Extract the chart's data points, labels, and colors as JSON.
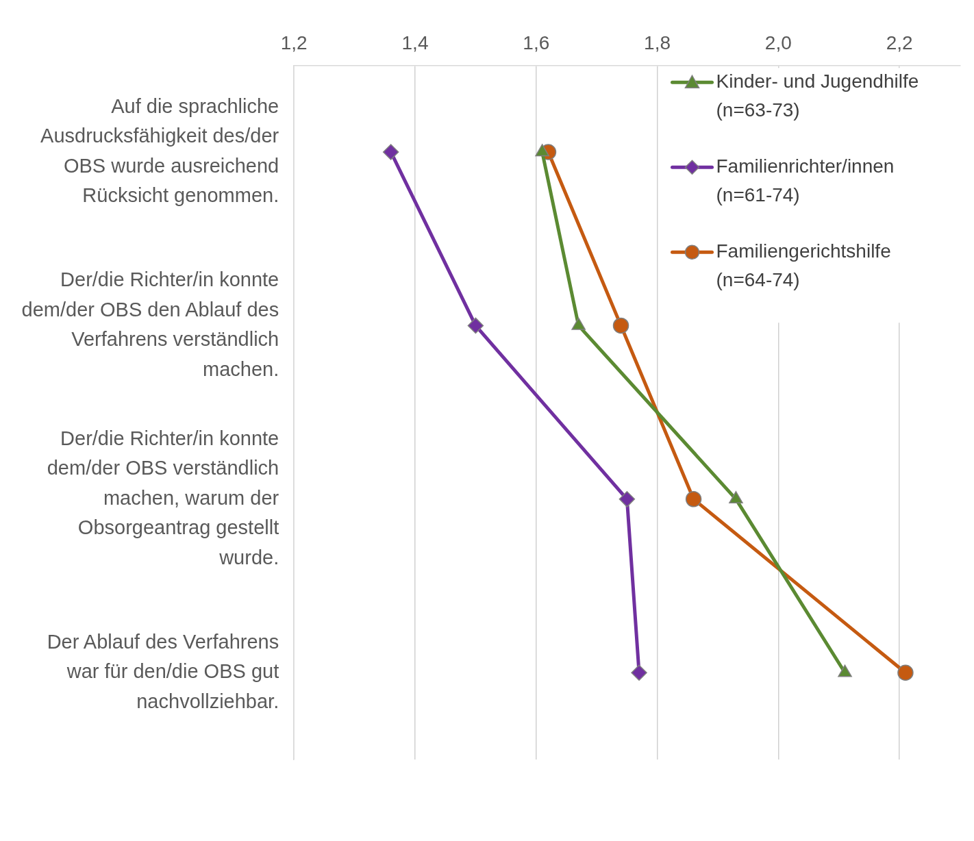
{
  "chart_data": {
    "type": "line",
    "orientation": "horizontal",
    "categories": [
      "Auf die sprachliche Ausdrucksfähigkeit des/der OBS wurde ausreichend Rücksicht genommen.",
      "Der/die Richter/in konnte dem/der OBS den Ablauf des Verfahrens verständlich machen.",
      "Der/die Richter/in konnte dem/der OBS verständlich machen, warum der Obsorgeantrag gestellt wurde.",
      "Der Ablauf des Verfahrens war für den/die OBS gut nachvollziehbar."
    ],
    "series": [
      {
        "name": "Kinder- und Jugendhilfe (n=63-73)",
        "color": "#5b8a32",
        "marker": "triangle",
        "values": [
          1.61,
          1.67,
          1.93,
          2.11
        ]
      },
      {
        "name": "Familienrichter/innen (n=61-74)",
        "color": "#7030a0",
        "marker": "diamond",
        "values": [
          1.36,
          1.5,
          1.75,
          1.77
        ]
      },
      {
        "name": "Familiengerichtshilfe (n=64-74)",
        "color": "#c55a11",
        "marker": "circle",
        "values": [
          1.62,
          1.74,
          1.86,
          2.21
        ]
      }
    ],
    "xlim": [
      1.2,
      2.3
    ],
    "xticks": [
      {
        "value": 1.2,
        "label": "1,2"
      },
      {
        "value": 1.4,
        "label": "1,4"
      },
      {
        "value": 1.6,
        "label": "1,6"
      },
      {
        "value": 1.8,
        "label": "1,8"
      },
      {
        "value": 2.0,
        "label": "2,0"
      },
      {
        "value": 2.2,
        "label": "2,2"
      }
    ],
    "grid": "x",
    "legend": "top right",
    "line_style": "solid"
  }
}
